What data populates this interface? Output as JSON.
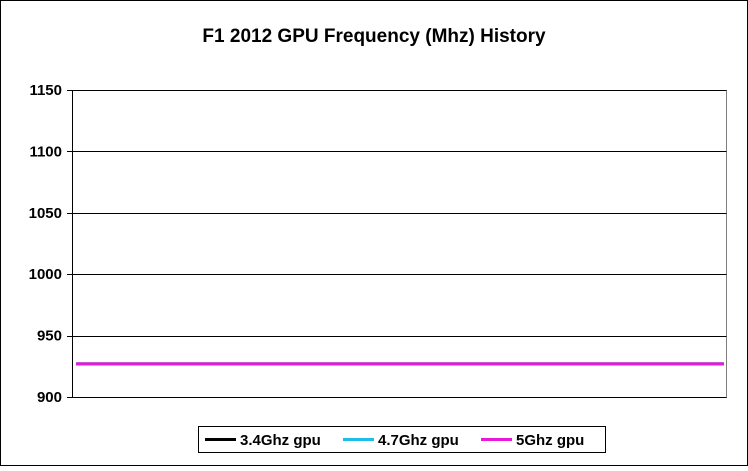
{
  "chart_data": {
    "type": "line",
    "title": "F1 2012 GPU Frequency (Mhz) History",
    "xlabel": "",
    "ylabel": "",
    "ylim": [
      900,
      1150
    ],
    "y_ticks": [
      "900",
      "950",
      "1000",
      "1050",
      "1100",
      "1150"
    ],
    "grid": true,
    "legend_position": "bottom",
    "x": [
      0,
      1
    ],
    "series": [
      {
        "name": "3.4Ghz gpu",
        "color": "#000000",
        "values": [
          927,
          927
        ]
      },
      {
        "name": "4.7Ghz gpu",
        "color": "#1ebde8",
        "values": [
          927,
          927
        ]
      },
      {
        "name": "5Ghz gpu",
        "color": "#e81ad8",
        "values": [
          927,
          927
        ]
      }
    ]
  }
}
